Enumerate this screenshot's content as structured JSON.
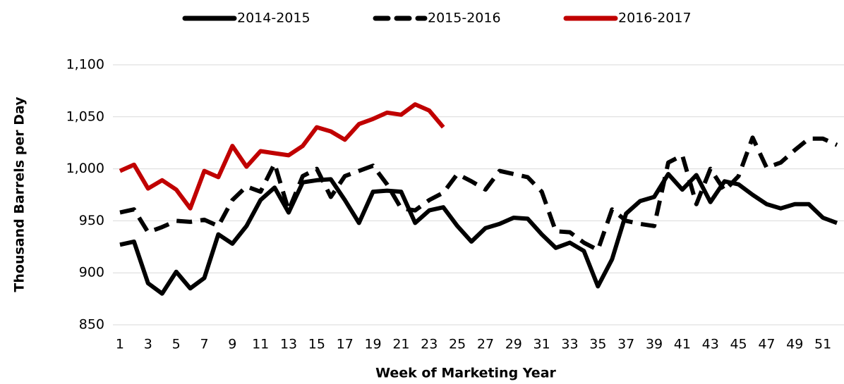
{
  "chart_data": {
    "type": "line",
    "y_label": "Thousand Barrels per Day",
    "x_label": "Week of Marketing Year",
    "categories": [
      1,
      null,
      3,
      null,
      5,
      null,
      7,
      null,
      9,
      null,
      11,
      null,
      13,
      null,
      15,
      null,
      17,
      null,
      19,
      null,
      21,
      null,
      23,
      null,
      25,
      null,
      27,
      null,
      29,
      null,
      31,
      null,
      33,
      null,
      35,
      null,
      37,
      null,
      39,
      null,
      41,
      null,
      43,
      null,
      45,
      null,
      47,
      null,
      49,
      null,
      51,
      null
    ],
    "ylim": [
      850,
      1100
    ],
    "yticks": [
      850,
      900,
      950,
      {
        "value": 1000,
        "label": "1,000"
      },
      {
        "value": 1050,
        "label": "1,050"
      },
      {
        "value": 1100,
        "label": "1,100"
      }
    ],
    "grid": true,
    "legend": "top",
    "series": [
      {
        "name": "2014-2015",
        "color": "#000000",
        "dash": false,
        "values": [
          927,
          930,
          890,
          880,
          901,
          885,
          895,
          937,
          928,
          945,
          970,
          982,
          958,
          987,
          989,
          990,
          970,
          948,
          978,
          979,
          978,
          948,
          960,
          963,
          945,
          930,
          943,
          947,
          953,
          952,
          937,
          924,
          929,
          921,
          887,
          913,
          957,
          969,
          973,
          995,
          980,
          994,
          968,
          988,
          985,
          975,
          966,
          962,
          966,
          966,
          953,
          948
        ]
      },
      {
        "name": "2015-2016",
        "color": "#000000",
        "dash": true,
        "values": [
          958,
          961,
          939,
          944,
          950,
          949,
          951,
          945,
          970,
          983,
          978,
          1005,
          960,
          993,
          1000,
          973,
          993,
          998,
          1003,
          985,
          962,
          960,
          970,
          977,
          995,
          988,
          980,
          998,
          995,
          992,
          978,
          940,
          939,
          929,
          922,
          961,
          950,
          947,
          945,
          1006,
          1013,
          966,
          1000,
          979,
          993,
          1030,
          1001,
          1006,
          1018,
          1029,
          1029,
          1023
        ]
      },
      {
        "name": "2016-2017",
        "color": "#c00000",
        "dash": false,
        "values": [
          998,
          1004,
          981,
          989,
          980,
          962,
          998,
          992,
          1022,
          1002,
          1017,
          1015,
          1013,
          1022,
          1040,
          1036,
          1028,
          1043,
          1048,
          1054,
          1052,
          1062,
          1056,
          1040,
          null,
          null,
          null,
          null,
          null,
          null,
          null,
          null,
          null,
          null,
          null,
          null,
          null,
          null,
          null,
          null,
          null,
          null,
          null,
          null,
          null,
          null,
          null,
          null,
          null,
          null,
          null,
          null
        ]
      }
    ]
  }
}
